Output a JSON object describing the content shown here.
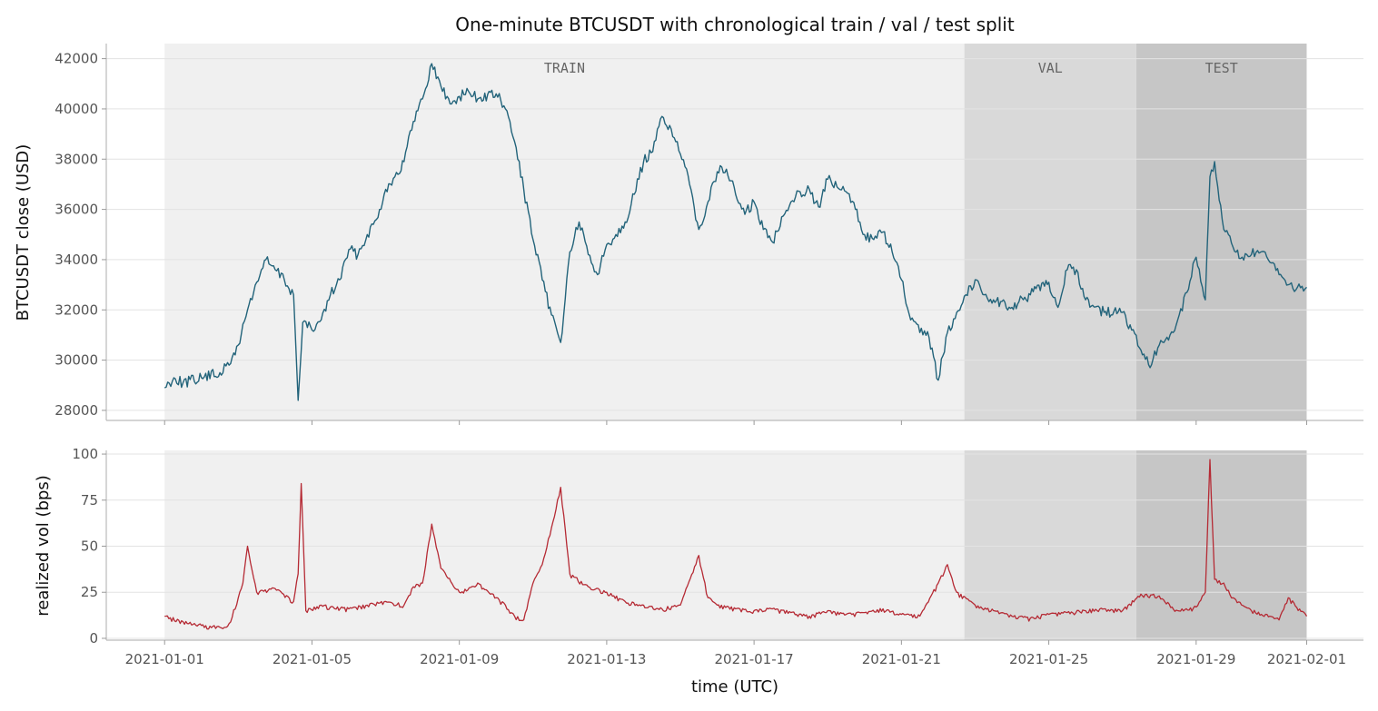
{
  "chart_data": {
    "title": "One-minute BTCUSDT with chronological train / val / test split",
    "xlabel": "time (UTC)",
    "x_range": [
      "2020-12-30T10:00",
      "2021-02-02T13:00"
    ],
    "x_ticks": [
      "2021-01-01",
      "2021-01-05",
      "2021-01-09",
      "2021-01-13",
      "2021-01-17",
      "2021-01-21",
      "2021-01-25",
      "2021-01-29",
      "2021-02-01"
    ],
    "regions": [
      {
        "label": "TRAIN",
        "start": "2021-01-01T00:00",
        "end": "2021-01-22T17:00",
        "color": "#f0f0f0"
      },
      {
        "label": "VAL",
        "start": "2021-01-22T17:00",
        "end": "2021-01-27T09:00",
        "color": "#d9d9d9"
      },
      {
        "label": "TEST",
        "start": "2021-01-27T09:00",
        "end": "2021-02-01T00:00",
        "color": "#c6c6c6"
      }
    ],
    "panels": [
      {
        "type": "line",
        "ylabel": "BTCUSDT close (USD)",
        "ylim": [
          27600,
          42600
        ],
        "y_ticks": [
          28000,
          30000,
          32000,
          34000,
          36000,
          38000,
          40000,
          42000
        ],
        "grid": true,
        "color": "#22637a",
        "series": [
          {
            "x": [
              "2021-01-01T00:00",
              "2021-01-01T06:00",
              "2021-01-01T12:00",
              "2021-01-02T00:00",
              "2021-01-02T12:00",
              "2021-01-02T18:00",
              "2021-01-03T00:00",
              "2021-01-03T06:00",
              "2021-01-03T12:00",
              "2021-01-03T18:00",
              "2021-01-04T00:00",
              "2021-01-04T06:00",
              "2021-01-04T12:00",
              "2021-01-04T15:00",
              "2021-01-04T18:00",
              "2021-01-05T00:00",
              "2021-01-05T06:00",
              "2021-01-05T12:00",
              "2021-01-05T18:00",
              "2021-01-06T00:00",
              "2021-01-06T06:00",
              "2021-01-06T12:00",
              "2021-01-06T18:00",
              "2021-01-07T00:00",
              "2021-01-07T06:00",
              "2021-01-07T12:00",
              "2021-01-07T18:00",
              "2021-01-08T00:00",
              "2021-01-08T06:00",
              "2021-01-08T12:00",
              "2021-01-08T18:00",
              "2021-01-09T00:00",
              "2021-01-09T06:00",
              "2021-01-09T12:00",
              "2021-01-10T00:00",
              "2021-01-10T06:00",
              "2021-01-10T12:00",
              "2021-01-10T18:00",
              "2021-01-11T00:00",
              "2021-01-11T06:00",
              "2021-01-11T12:00",
              "2021-01-11T18:00",
              "2021-01-12T00:00",
              "2021-01-12T06:00",
              "2021-01-12T12:00",
              "2021-01-12T18:00",
              "2021-01-13T00:00",
              "2021-01-13T06:00",
              "2021-01-13T12:00",
              "2021-01-13T18:00",
              "2021-01-14T00:00",
              "2021-01-14T06:00",
              "2021-01-14T12:00",
              "2021-01-14T18:00",
              "2021-01-15T00:00",
              "2021-01-15T06:00",
              "2021-01-15T12:00",
              "2021-01-15T18:00",
              "2021-01-16T00:00",
              "2021-01-16T06:00",
              "2021-01-16T12:00",
              "2021-01-16T18:00",
              "2021-01-17T00:00",
              "2021-01-17T06:00",
              "2021-01-17T12:00",
              "2021-01-17T18:00",
              "2021-01-18T00:00",
              "2021-01-18T06:00",
              "2021-01-18T12:00",
              "2021-01-18T18:00",
              "2021-01-19T00:00",
              "2021-01-19T06:00",
              "2021-01-19T12:00",
              "2021-01-19T18:00",
              "2021-01-20T00:00",
              "2021-01-20T06:00",
              "2021-01-20T12:00",
              "2021-01-20T18:00",
              "2021-01-21T00:00",
              "2021-01-21T06:00",
              "2021-01-21T12:00",
              "2021-01-21T18:00",
              "2021-01-22T00:00",
              "2021-01-22T06:00",
              "2021-01-22T12:00",
              "2021-01-22T18:00",
              "2021-01-23T00:00",
              "2021-01-23T06:00",
              "2021-01-23T12:00",
              "2021-01-24T00:00",
              "2021-01-24T12:00",
              "2021-01-25T00:00",
              "2021-01-25T06:00",
              "2021-01-25T12:00",
              "2021-01-25T18:00",
              "2021-01-26T00:00",
              "2021-01-26T12:00",
              "2021-01-27T00:00",
              "2021-01-27T06:00",
              "2021-01-27T12:00",
              "2021-01-27T18:00",
              "2021-01-28T00:00",
              "2021-01-28T06:00",
              "2021-01-28T12:00",
              "2021-01-28T18:00",
              "2021-01-29T00:00",
              "2021-01-29T06:00",
              "2021-01-29T09:00",
              "2021-01-29T12:00",
              "2021-01-29T18:00",
              "2021-01-30T00:00",
              "2021-01-30T06:00",
              "2021-01-30T12:00",
              "2021-01-30T18:00",
              "2021-01-31T00:00",
              "2021-01-31T06:00",
              "2021-01-31T12:00",
              "2021-01-31T18:00",
              "2021-02-01T00:00"
            ],
            "y": [
              28900,
              29300,
              29100,
              29300,
              29500,
              29800,
              30600,
              32000,
              33100,
              34000,
              33600,
              33200,
              32600,
              28400,
              31500,
              31200,
              31600,
              32600,
              33200,
              34400,
              34200,
              35000,
              35600,
              36800,
              37300,
              37900,
              39500,
              40400,
              41800,
              40900,
              40200,
              40500,
              40700,
              40400,
              40600,
              40000,
              38700,
              36800,
              34800,
              33200,
              31800,
              30700,
              34300,
              35500,
              34200,
              33400,
              34600,
              35000,
              35500,
              36600,
              37900,
              38300,
              39700,
              39200,
              38200,
              37000,
              35200,
              36300,
              37500,
              37600,
              36600,
              35800,
              36300,
              35200,
              34700,
              35700,
              36300,
              36700,
              36800,
              36100,
              37200,
              36900,
              36700,
              36000,
              35000,
              34800,
              35100,
              34300,
              33200,
              31600,
              31100,
              30900,
              29200,
              31100,
              31900,
              32600,
              33200,
              32600,
              32400,
              32100,
              32600,
              33100,
              32100,
              33600,
              33600,
              32400,
              31900,
              31900,
              31200,
              30400,
              29700,
              30600,
              30800,
              31600,
              32700,
              34100,
              32400,
              37300,
              37900,
              35200,
              34500,
              34100,
              34200,
              34300,
              33900,
              33400,
              33000,
              32900,
              32900
            ]
          }
        ]
      },
      {
        "type": "line",
        "ylabel": "realized vol (bps)",
        "ylim": [
          -1,
          102
        ],
        "y_ticks": [
          0,
          25,
          50,
          75,
          100
        ],
        "grid": true,
        "color": "#b52a34",
        "series": [
          {
            "x": [
              "2021-01-01T00:00",
              "2021-01-01T12:00",
              "2021-01-02T00:00",
              "2021-01-02T12:00",
              "2021-01-02T18:00",
              "2021-01-03T00:00",
              "2021-01-03T03:00",
              "2021-01-03T06:00",
              "2021-01-03T12:00",
              "2021-01-04T00:00",
              "2021-01-04T12:00",
              "2021-01-04T15:00",
              "2021-01-04T17:00",
              "2021-01-04T20:00",
              "2021-01-05T06:00",
              "2021-01-05T12:00",
              "2021-01-06T00:00",
              "2021-01-06T12:00",
              "2021-01-07T00:00",
              "2021-01-07T12:00",
              "2021-01-07T18:00",
              "2021-01-08T00:00",
              "2021-01-08T06:00",
              "2021-01-08T12:00",
              "2021-01-09T00:00",
              "2021-01-09T12:00",
              "2021-01-10T00:00",
              "2021-01-10T06:00",
              "2021-01-10T12:00",
              "2021-01-10T18:00",
              "2021-01-11T00:00",
              "2021-01-11T06:00",
              "2021-01-11T12:00",
              "2021-01-11T18:00",
              "2021-01-12T00:00",
              "2021-01-12T12:00",
              "2021-01-13T00:00",
              "2021-01-13T12:00",
              "2021-01-14T00:00",
              "2021-01-14T12:00",
              "2021-01-15T00:00",
              "2021-01-15T12:00",
              "2021-01-15T18:00",
              "2021-01-16T00:00",
              "2021-01-16T12:00",
              "2021-01-17T00:00",
              "2021-01-17T12:00",
              "2021-01-18T00:00",
              "2021-01-18T12:00",
              "2021-01-19T00:00",
              "2021-01-19T12:00",
              "2021-01-20T00:00",
              "2021-01-20T12:00",
              "2021-01-21T00:00",
              "2021-01-21T12:00",
              "2021-01-22T00:00",
              "2021-01-22T06:00",
              "2021-01-22T12:00",
              "2021-01-23T00:00",
              "2021-01-23T12:00",
              "2021-01-24T00:00",
              "2021-01-24T12:00",
              "2021-01-25T00:00",
              "2021-01-25T12:00",
              "2021-01-26T00:00",
              "2021-01-26T12:00",
              "2021-01-27T00:00",
              "2021-01-27T12:00",
              "2021-01-28T00:00",
              "2021-01-28T12:00",
              "2021-01-29T00:00",
              "2021-01-29T06:00",
              "2021-01-29T09:00",
              "2021-01-29T12:00",
              "2021-01-29T18:00",
              "2021-01-30T00:00",
              "2021-01-30T12:00",
              "2021-01-31T00:00",
              "2021-01-31T06:00",
              "2021-01-31T12:00",
              "2021-02-01T00:00"
            ],
            "y": [
              12,
              9,
              7,
              6,
              8,
              22,
              30,
              50,
              25,
              27,
              20,
              35,
              84,
              15,
              18,
              17,
              16,
              18,
              20,
              18,
              28,
              30,
              62,
              38,
              25,
              30,
              22,
              18,
              12,
              10,
              30,
              40,
              60,
              82,
              35,
              28,
              25,
              20,
              18,
              16,
              18,
              45,
              22,
              18,
              16,
              15,
              16,
              14,
              12,
              15,
              13,
              14,
              16,
              13,
              12,
              30,
              40,
              25,
              18,
              15,
              12,
              11,
              13,
              14,
              15,
              16,
              15,
              24,
              23,
              15,
              17,
              25,
              97,
              32,
              30,
              22,
              15,
              12,
              10,
              22,
              12
            ]
          }
        ]
      }
    ]
  }
}
